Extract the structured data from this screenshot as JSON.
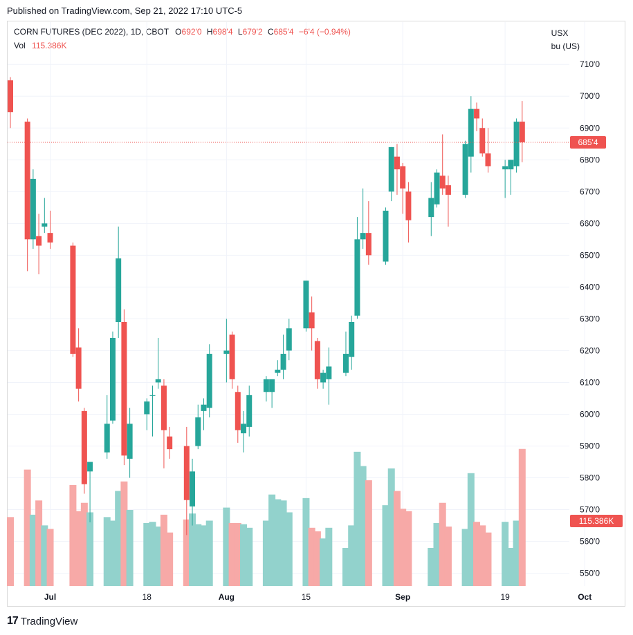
{
  "published": "Published on TradingView.com, Sep 21, 2022 17:10 UTC-5",
  "legend": {
    "symbol": "CORN FUTURES (DEC 2022), 1D, CBOT",
    "o_label": "O",
    "o_value": "692'0",
    "h_label": "H",
    "h_value": "698'4",
    "l_label": "L",
    "l_value": "679'2",
    "c_label": "C",
    "c_value": "685'4",
    "change": "−6'4 (−0.94%)",
    "vol_label": "Vol",
    "vol_value": "115.386K"
  },
  "currency": "USX",
  "unit": "bu (US)",
  "footer": {
    "brand": "TradingView"
  },
  "colors": {
    "up": "#26a69a",
    "down": "#ef5350",
    "up_vol": "#92d2cc",
    "down_vol": "#f7a9a7"
  },
  "chart_data": {
    "type": "candlestick",
    "y_unit": "cents per bushel",
    "ylim": [
      546,
      712
    ],
    "y_ticks": [
      "550'0",
      "560'0",
      "570'0",
      "580'0",
      "590'0",
      "600'0",
      "610'0",
      "620'0",
      "630'0",
      "640'0",
      "650'0",
      "660'0",
      "670'0",
      "680'0",
      "690'0",
      "700'0",
      "710'0"
    ],
    "x_ticks": [
      "Jul",
      "18",
      "Aug",
      "15",
      "Sep",
      "19",
      "Oct"
    ],
    "last_price": 685.5,
    "last_price_label": "685'4",
    "last_volume_label": "115.386K",
    "volume_max": 115000,
    "candles": [
      {
        "date": "2022-06-24",
        "o": 705,
        "h": 706,
        "l": 690,
        "c": 695,
        "v": 58000
      },
      {
        "date": "2022-06-27",
        "o": 692,
        "h": 693,
        "l": 645,
        "c": 655,
        "v": 98000
      },
      {
        "date": "2022-06-28",
        "o": 655,
        "h": 677,
        "l": 652,
        "c": 674,
        "v": 60000
      },
      {
        "date": "2022-06-29",
        "o": 656,
        "h": 663,
        "l": 644,
        "c": 653,
        "v": 72000
      },
      {
        "date": "2022-06-30",
        "o": 659,
        "h": 668,
        "l": 657,
        "c": 660,
        "v": 51000
      },
      {
        "date": "2022-07-01",
        "o": 657,
        "h": 664,
        "l": 652,
        "c": 654,
        "v": 48000
      },
      {
        "date": "2022-07-05",
        "o": 653,
        "h": 654,
        "l": 618,
        "c": 619,
        "v": 85000
      },
      {
        "date": "2022-07-06",
        "o": 621,
        "h": 627,
        "l": 604,
        "c": 608,
        "v": 63000
      },
      {
        "date": "2022-07-07",
        "o": 601,
        "h": 602,
        "l": 575,
        "c": 578,
        "v": 70000
      },
      {
        "date": "2022-07-08",
        "o": 582,
        "h": 584,
        "l": 566,
        "c": 585,
        "v": 62000
      },
      {
        "date": "2022-07-11",
        "o": 588,
        "h": 606,
        "l": 586,
        "c": 597,
        "v": 58000
      },
      {
        "date": "2022-07-12",
        "o": 598,
        "h": 626,
        "l": 597,
        "c": 624,
        "v": 55000
      },
      {
        "date": "2022-07-13",
        "o": 629,
        "h": 659,
        "l": 624,
        "c": 649,
        "v": 80000
      },
      {
        "date": "2022-07-14",
        "o": 629,
        "h": 633,
        "l": 584,
        "c": 587,
        "v": 88000
      },
      {
        "date": "2022-07-15",
        "o": 586,
        "h": 602,
        "l": 580,
        "c": 597,
        "v": 64000
      },
      {
        "date": "2022-07-18",
        "o": 600,
        "h": 605,
        "l": 595,
        "c": 604,
        "v": 53000
      },
      {
        "date": "2022-07-19",
        "o": 606,
        "h": 609,
        "l": 593,
        "c": 606,
        "v": 54000
      },
      {
        "date": "2022-07-20",
        "o": 610,
        "h": 624,
        "l": 608,
        "c": 611,
        "v": 50000
      },
      {
        "date": "2022-07-21",
        "o": 609,
        "h": 611,
        "l": 583,
        "c": 595,
        "v": 60000
      },
      {
        "date": "2022-07-22",
        "o": 593,
        "h": 596,
        "l": 586,
        "c": 589,
        "v": 45000
      },
      {
        "date": "2022-07-25",
        "o": 590,
        "h": 596,
        "l": 562,
        "c": 573,
        "v": 56000
      },
      {
        "date": "2022-07-26",
        "o": 571,
        "h": 586,
        "l": 565,
        "c": 582,
        "v": 61000
      },
      {
        "date": "2022-07-27",
        "o": 590,
        "h": 603,
        "l": 589,
        "c": 599,
        "v": 52000
      },
      {
        "date": "2022-07-28",
        "o": 601,
        "h": 605,
        "l": 595,
        "c": 603,
        "v": 51000
      },
      {
        "date": "2022-07-29",
        "o": 602,
        "h": 622,
        "l": 599,
        "c": 619,
        "v": 55000
      },
      {
        "date": "2022-08-01",
        "o": 619,
        "h": 630,
        "l": 610,
        "c": 620,
        "v": 66000
      },
      {
        "date": "2022-08-02",
        "o": 625,
        "h": 626,
        "l": 608,
        "c": 611,
        "v": 53000
      },
      {
        "date": "2022-08-03",
        "o": 607,
        "h": 609,
        "l": 591,
        "c": 595,
        "v": 53000
      },
      {
        "date": "2022-08-04",
        "o": 594,
        "h": 601,
        "l": 588,
        "c": 597,
        "v": 52000
      },
      {
        "date": "2022-08-05",
        "o": 596,
        "h": 609,
        "l": 593,
        "c": 606,
        "v": 49000
      },
      {
        "date": "2022-08-08",
        "o": 607,
        "h": 612,
        "l": 604,
        "c": 611,
        "v": 55000
      },
      {
        "date": "2022-08-09",
        "o": 607,
        "h": 610,
        "l": 602,
        "c": 611,
        "v": 77000
      },
      {
        "date": "2022-08-10",
        "o": 613,
        "h": 617,
        "l": 612,
        "c": 614,
        "v": 73000
      },
      {
        "date": "2022-08-11",
        "o": 614,
        "h": 625,
        "l": 611,
        "c": 619,
        "v": 72000
      },
      {
        "date": "2022-08-12",
        "o": 620,
        "h": 630,
        "l": 617,
        "c": 627,
        "v": 62000
      },
      {
        "date": "2022-08-15",
        "o": 627,
        "h": 642,
        "l": 626,
        "c": 642,
        "v": 74000
      },
      {
        "date": "2022-08-16",
        "o": 632,
        "h": 637,
        "l": 620,
        "c": 627,
        "v": 49000
      },
      {
        "date": "2022-08-17",
        "o": 623,
        "h": 624,
        "l": 608,
        "c": 611,
        "v": 46000
      },
      {
        "date": "2022-08-18",
        "o": 610,
        "h": 614,
        "l": 608,
        "c": 613,
        "v": 40000
      },
      {
        "date": "2022-08-19",
        "o": 611,
        "h": 621,
        "l": 603,
        "c": 615,
        "v": 49000
      },
      {
        "date": "2022-08-22",
        "o": 613,
        "h": 626,
        "l": 612,
        "c": 619,
        "v": 32000
      },
      {
        "date": "2022-08-23",
        "o": 618,
        "h": 631,
        "l": 614,
        "c": 629,
        "v": 51000
      },
      {
        "date": "2022-08-24",
        "o": 631,
        "h": 662,
        "l": 630,
        "c": 655,
        "v": 113000
      },
      {
        "date": "2022-08-25",
        "o": 655,
        "h": 671,
        "l": 652,
        "c": 657,
        "v": 101000
      },
      {
        "date": "2022-08-26",
        "o": 657,
        "h": 667,
        "l": 647,
        "c": 650,
        "v": 89000
      },
      {
        "date": "2022-08-29",
        "o": 648,
        "h": 665,
        "l": 647,
        "c": 664,
        "v": 68000
      },
      {
        "date": "2022-08-30",
        "o": 670,
        "h": 684,
        "l": 667,
        "c": 684,
        "v": 99000
      },
      {
        "date": "2022-08-31",
        "o": 681,
        "h": 685,
        "l": 669,
        "c": 677,
        "v": 80000
      },
      {
        "date": "2022-09-01",
        "o": 678,
        "h": 679,
        "l": 663,
        "c": 671,
        "v": 65000
      },
      {
        "date": "2022-09-02",
        "o": 670,
        "h": 673,
        "l": 654,
        "c": 661,
        "v": 63000
      },
      {
        "date": "2022-09-06",
        "o": 662,
        "h": 673,
        "l": 656,
        "c": 668,
        "v": 32000
      },
      {
        "date": "2022-09-07",
        "o": 666,
        "h": 677,
        "l": 665,
        "c": 676,
        "v": 53000
      },
      {
        "date": "2022-09-08",
        "o": 675,
        "h": 688,
        "l": 669,
        "c": 671,
        "v": 70000
      },
      {
        "date": "2022-09-09",
        "o": 672,
        "h": 675,
        "l": 659,
        "c": 669,
        "v": 50000
      },
      {
        "date": "2022-09-12",
        "o": 669,
        "h": 686,
        "l": 668,
        "c": 685,
        "v": 48000
      },
      {
        "date": "2022-09-13",
        "o": 681,
        "h": 700,
        "l": 676,
        "c": 696,
        "v": 95000
      },
      {
        "date": "2022-09-14",
        "o": 696,
        "h": 698,
        "l": 689,
        "c": 693,
        "v": 54000
      },
      {
        "date": "2022-09-15",
        "o": 690,
        "h": 693,
        "l": 681,
        "c": 682,
        "v": 51000
      },
      {
        "date": "2022-09-16",
        "o": 682,
        "h": 690,
        "l": 676,
        "c": 678,
        "v": 45000
      },
      {
        "date": "2022-09-19",
        "o": 677,
        "h": 680,
        "l": 668,
        "c": 678,
        "v": 54000
      },
      {
        "date": "2022-09-20",
        "o": 677,
        "h": 680,
        "l": 669,
        "c": 680,
        "v": 32000
      },
      {
        "date": "2022-09-21",
        "o": 678,
        "h": 693,
        "l": 676,
        "c": 692,
        "v": 55000
      },
      {
        "date": "2022-09-22",
        "o": 692,
        "h": 698.5,
        "l": 679.25,
        "c": 685.5,
        "v": 115386
      }
    ]
  }
}
